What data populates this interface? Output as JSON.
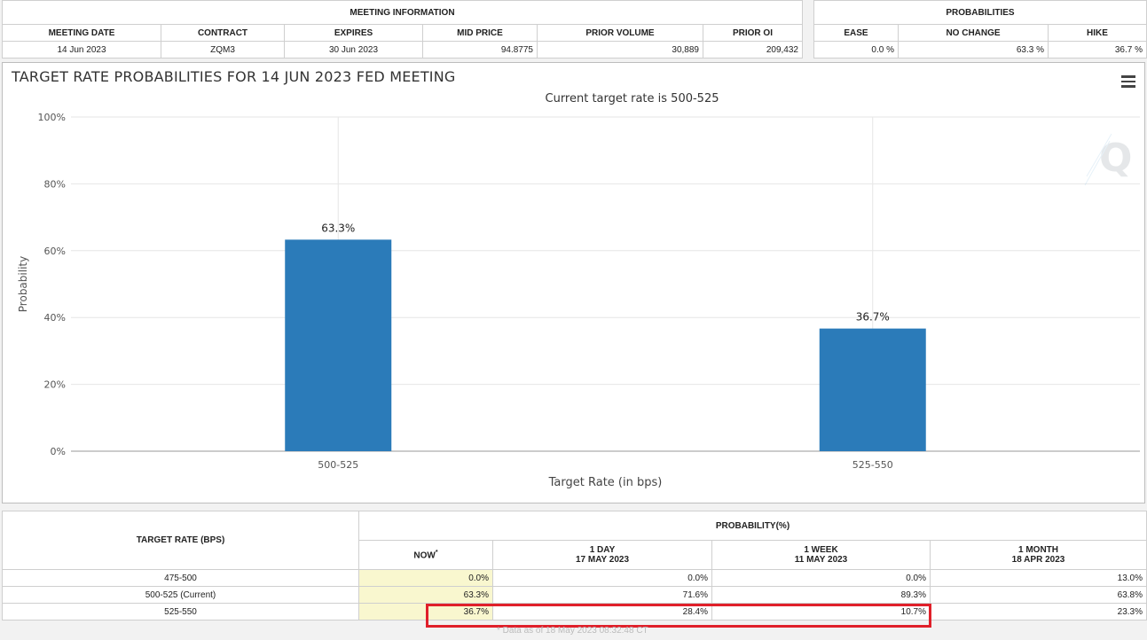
{
  "meeting_info": {
    "caption": "MEETING INFORMATION",
    "headers": [
      "MEETING DATE",
      "CONTRACT",
      "EXPIRES",
      "MID PRICE",
      "PRIOR VOLUME",
      "PRIOR OI"
    ],
    "row": [
      "14 Jun 2023",
      "ZQM3",
      "30 Jun 2023",
      "94.8775",
      "30,889",
      "209,432"
    ]
  },
  "probabilities": {
    "caption": "PROBABILITIES",
    "headers": [
      "EASE",
      "NO CHANGE",
      "HIKE"
    ],
    "row": [
      "0.0 %",
      "63.3 %",
      "36.7 %"
    ]
  },
  "chart_data": {
    "type": "bar",
    "title": "TARGET RATE PROBABILITIES FOR 14 JUN 2023 FED MEETING",
    "subtitle": "Current target rate is 500-525",
    "xlabel": "Target Rate (in bps)",
    "ylabel": "Probability",
    "categories": [
      "500-525",
      "525-550"
    ],
    "values": [
      63.3,
      36.7
    ],
    "data_labels": [
      "63.3%",
      "36.7%"
    ],
    "yticks": [
      "0%",
      "20%",
      "40%",
      "60%",
      "80%",
      "100%"
    ],
    "ylim": [
      0,
      100
    ],
    "bar_color": "#2b7bb9",
    "grid": true,
    "legend": false
  },
  "history": {
    "target_rate_header": "TARGET RATE (BPS)",
    "probability_header": "PROBABILITY(%)",
    "columns": [
      {
        "line1": "NOW",
        "line2": ""
      },
      {
        "line1": "1 DAY",
        "line2": "17 MAY 2023"
      },
      {
        "line1": "1 WEEK",
        "line2": "11 MAY 2023"
      },
      {
        "line1": "1 MONTH",
        "line2": "18 APR 2023"
      }
    ],
    "now_mark": "*",
    "rows": [
      {
        "rate": "475-500",
        "values": [
          "0.0%",
          "0.0%",
          "0.0%",
          "13.0%"
        ]
      },
      {
        "rate": "500-525 (Current)",
        "values": [
          "63.3%",
          "71.6%",
          "89.3%",
          "63.8%"
        ]
      },
      {
        "rate": "525-550",
        "values": [
          "36.7%",
          "28.4%",
          "10.7%",
          "23.3%"
        ]
      }
    ],
    "footnote": "* Data as of 18 May 2023 08:32:48 CT"
  },
  "colors": {
    "highlight": "#e0202a",
    "now_column": "#f9f7cf"
  }
}
